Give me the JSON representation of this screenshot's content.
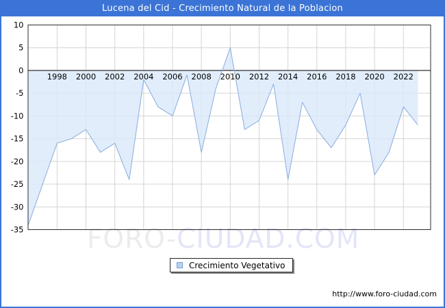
{
  "window": {
    "title": "Lucena del Cid - Crecimiento Natural de la Poblacion"
  },
  "colors": {
    "frame_blue": "#3b74d6",
    "line": "#8fb1e1",
    "fill": "#d9e9fa",
    "grid": "#d4d4d4",
    "axis": "#2b2b2b",
    "zero_line": "#1a1a1a",
    "legend_swatch": "#b7d2f0",
    "legend_swatch_border": "#7aa0cc",
    "watermark_gray": "#ececec",
    "watermark_blue": "#e3e5f8"
  },
  "chart_data": {
    "type": "area",
    "title": "Lucena del Cid - Crecimiento Natural de la Poblacion",
    "series_name": "Crecimiento Vegetativo",
    "x": [
      1996,
      1997,
      1998,
      1999,
      2000,
      2001,
      2002,
      2003,
      2004,
      2005,
      2006,
      2007,
      2008,
      2009,
      2010,
      2011,
      2012,
      2013,
      2014,
      2015,
      2016,
      2017,
      2018,
      2019,
      2020,
      2021,
      2022,
      2023
    ],
    "values": [
      -34,
      -25,
      -16,
      -15,
      -13,
      -18,
      -16,
      -24,
      -2,
      -8,
      -10,
      -1,
      -18,
      -4,
      5,
      -13,
      -11,
      -3,
      -24,
      -7,
      -13,
      -17,
      -12,
      -5,
      -23,
      -18,
      -8,
      -12
    ],
    "baseline": 0,
    "ylim": [
      -35,
      10
    ],
    "yticks": [
      10,
      5,
      0,
      -5,
      -10,
      -15,
      -20,
      -25,
      -30,
      -35
    ],
    "x_tick_labels": [
      "1998",
      "2000",
      "2002",
      "2004",
      "2006",
      "2008",
      "2010",
      "2012",
      "2014",
      "2016",
      "2018",
      "2020",
      "2022"
    ],
    "grid": true,
    "legend_position": "bottom-center"
  },
  "legend": {
    "label": "Crecimiento Vegetativo"
  },
  "watermark": {
    "part1": "FORO-",
    "part2": "CIUDAD.COM"
  },
  "footer": {
    "url": "http://www.foro-ciudad.com"
  }
}
